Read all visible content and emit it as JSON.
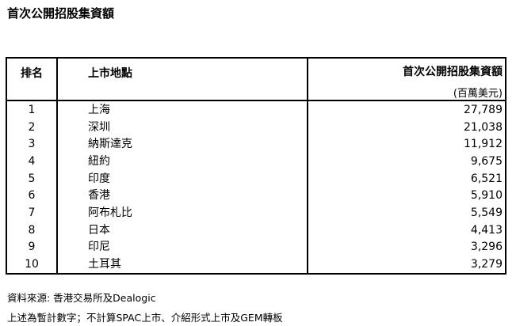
{
  "title": "首次公開招股集資額",
  "table": {
    "headers": {
      "rank": "排名",
      "venue": "上市地點",
      "amount": "首次公開招股集資額",
      "unit": "(百萬美元)"
    },
    "rows": [
      {
        "rank": "1",
        "venue": "上海",
        "amount": "27,789"
      },
      {
        "rank": "2",
        "venue": "深圳",
        "amount": "21,038"
      },
      {
        "rank": "3",
        "venue": "納斯達克",
        "amount": "11,912"
      },
      {
        "rank": "4",
        "venue": "紐約",
        "amount": "9,675"
      },
      {
        "rank": "5",
        "venue": "印度",
        "amount": "6,521"
      },
      {
        "rank": "6",
        "venue": "香港",
        "amount": "5,910"
      },
      {
        "rank": "7",
        "venue": "阿布札比",
        "amount": "5,549"
      },
      {
        "rank": "8",
        "venue": "日本",
        "amount": "4,413"
      },
      {
        "rank": "9",
        "venue": "印尼",
        "amount": "3,296"
      },
      {
        "rank": "10",
        "venue": "土耳其",
        "amount": "3,279"
      }
    ]
  },
  "notes": {
    "source": "資料來源: 香港交易所及Dealogic",
    "remark": "上述為暫計數字；不計算SPAC上市、介紹形式上市及GEM轉板"
  }
}
